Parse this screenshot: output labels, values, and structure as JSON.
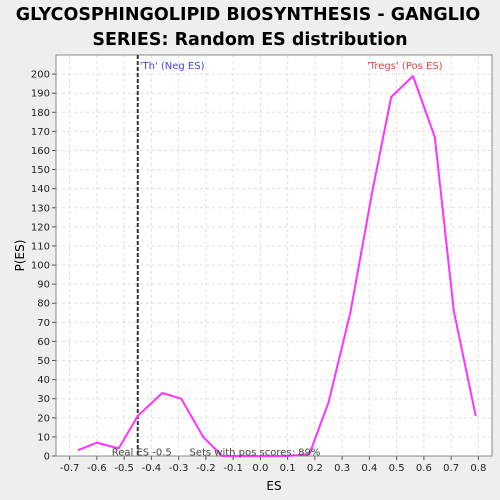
{
  "chart_data": {
    "type": "line",
    "title": "GLYCOSPHINGOLIPID BIOSYNTHESIS - GANGLIO SERIES: Random ES distribution",
    "title_lines": [
      "GLYCOSPHINGOLIPID BIOSYNTHESIS - GANGLIO",
      "SERIES: Random ES distribution"
    ],
    "xlabel": "ES",
    "ylabel": "P(ES)",
    "xlim": [
      -0.75,
      0.85
    ],
    "ylim": [
      0,
      210
    ],
    "x_ticks": [
      -0.7,
      -0.6,
      -0.5,
      -0.4,
      -0.3,
      -0.2,
      -0.1,
      0.0,
      0.1,
      0.2,
      0.3,
      0.4,
      0.5,
      0.6,
      0.7,
      0.8
    ],
    "y_ticks": [
      0,
      10,
      20,
      30,
      40,
      50,
      60,
      70,
      80,
      90,
      100,
      110,
      120,
      130,
      140,
      150,
      160,
      170,
      180,
      190,
      200
    ],
    "grid": true,
    "series": [
      {
        "color": "#ff33ff",
        "x": [
          -0.67,
          -0.6,
          -0.52,
          -0.45,
          -0.36,
          -0.29,
          -0.21,
          -0.14,
          -0.06,
          0.02,
          0.1,
          0.18,
          0.25,
          0.33,
          0.41,
          0.48,
          0.56,
          0.64,
          0.71,
          0.79
        ],
        "y": [
          3,
          7,
          4,
          21,
          33,
          30,
          10,
          0,
          0,
          0,
          0,
          1,
          28,
          75,
          138,
          188,
          199,
          167,
          76,
          21
        ]
      }
    ],
    "real_es_line": {
      "x": -0.45,
      "color": "#333333",
      "label": "Real ES -0.5"
    },
    "annotations": {
      "neg_label": "'Th' (Neg ES)",
      "neg_color": "#4444dd",
      "pos_label": "'Tregs' (Pos ES)",
      "pos_color": "#dd4444",
      "sets_text": "Sets with pos scores: 89%"
    },
    "colors": {
      "plot_bg": "#ffffff",
      "page_bg": "#eeeeee",
      "grid": "#dddddd"
    }
  }
}
